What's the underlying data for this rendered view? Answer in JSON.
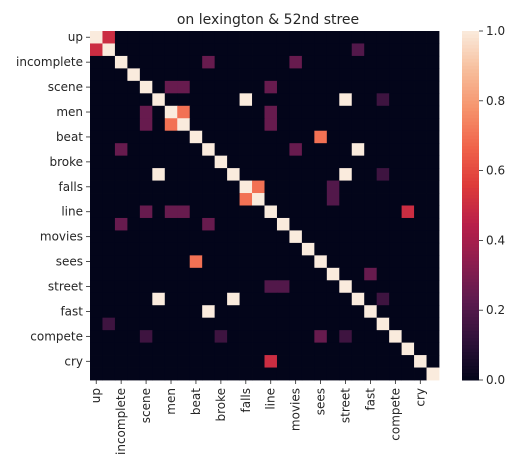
{
  "chart_data": {
    "type": "heatmap",
    "title": "on lexington & 52nd stree",
    "xlabel": "",
    "ylabel": "",
    "labels": [
      "up",
      "",
      "incomplete",
      "",
      "scene",
      "",
      "men",
      "",
      "beat",
      "",
      "broke",
      "",
      "falls",
      "",
      "line",
      "",
      "movies",
      "",
      "sees",
      "",
      "street",
      "",
      "fast",
      "",
      "compete",
      "",
      "cry",
      ""
    ],
    "x_tick_labels": [
      "up",
      "incomplete",
      "scene",
      "men",
      "beat",
      "broke",
      "falls",
      "line",
      "movies",
      "sees",
      "street",
      "fast",
      "compete",
      "cry"
    ],
    "y_tick_labels": [
      "up",
      "incomplete",
      "scene",
      "men",
      "beat",
      "broke",
      "falls",
      "line",
      "movies",
      "sees",
      "street",
      "fast",
      "compete",
      "cry"
    ],
    "colorbar": {
      "min": 0.0,
      "max": 1.0,
      "ticks": [
        "0.0",
        "0.2",
        "0.4",
        "0.6",
        "0.8",
        "1.0"
      ]
    },
    "colormap": [
      "#03051a",
      "#2e1139",
      "#5b1a4e",
      "#8b1d4e",
      "#b81f4a",
      "#dd3a3a",
      "#f0634a",
      "#f6936c",
      "#f7be9c",
      "#faebdd"
    ],
    "matrix": [
      [
        1,
        0.5,
        0,
        0,
        0,
        0,
        0,
        0,
        0,
        0,
        0,
        0,
        0,
        0,
        0,
        0,
        0,
        0,
        0,
        0,
        0,
        0,
        0,
        0,
        0,
        0,
        0,
        0
      ],
      [
        0.5,
        1,
        0,
        0,
        0,
        0,
        0,
        0,
        0,
        0,
        0,
        0,
        0,
        0,
        0,
        0,
        0,
        0,
        0,
        0,
        0,
        0.2,
        0,
        0,
        0,
        0,
        0,
        0
      ],
      [
        0,
        0,
        1,
        0,
        0,
        0,
        0,
        0,
        0,
        0.25,
        0,
        0,
        0,
        0,
        0,
        0,
        0.25,
        0,
        0,
        0,
        0,
        0,
        0,
        0,
        0,
        0,
        0,
        0
      ],
      [
        0,
        0,
        0,
        1,
        0,
        0,
        0,
        0,
        0,
        0,
        0,
        0,
        0,
        0,
        0,
        0,
        0,
        0,
        0,
        0,
        0,
        0,
        0,
        0,
        0,
        0,
        0,
        0
      ],
      [
        0,
        0,
        0,
        0,
        1,
        0,
        0.25,
        0.25,
        0,
        0,
        0,
        0,
        0,
        0,
        0.25,
        0,
        0,
        0,
        0,
        0,
        0,
        0,
        0,
        0,
        0,
        0,
        0,
        0
      ],
      [
        0,
        0,
        0,
        0,
        0,
        1,
        0,
        0,
        0,
        0,
        0,
        0,
        1,
        0,
        0,
        0,
        0,
        0,
        0,
        0,
        1,
        0,
        0,
        0.15,
        0,
        0,
        0,
        0
      ],
      [
        0,
        0,
        0,
        0,
        0.25,
        0,
        1,
        0.7,
        0,
        0,
        0,
        0,
        0,
        0,
        0.25,
        0,
        0,
        0,
        0,
        0,
        0,
        0,
        0,
        0,
        0,
        0,
        0,
        0
      ],
      [
        0,
        0,
        0,
        0,
        0.25,
        0,
        0.7,
        1,
        0,
        0,
        0,
        0,
        0,
        0,
        0.25,
        0,
        0,
        0,
        0,
        0,
        0,
        0,
        0,
        0,
        0,
        0,
        0,
        0
      ],
      [
        0,
        0,
        0,
        0,
        0,
        0,
        0,
        0,
        1,
        0,
        0,
        0,
        0,
        0,
        0,
        0,
        0,
        0,
        0.7,
        0,
        0,
        0,
        0,
        0,
        0,
        0,
        0,
        0
      ],
      [
        0,
        0,
        0.25,
        0,
        0,
        0,
        0,
        0,
        0,
        1,
        0,
        0,
        0,
        0,
        0,
        0,
        0.25,
        0,
        0,
        0,
        0,
        1,
        0,
        0,
        0,
        0,
        0,
        0
      ],
      [
        0,
        0,
        0,
        0,
        0,
        0,
        0,
        0,
        0,
        0,
        1,
        0,
        0,
        0,
        0,
        0,
        0,
        0,
        0,
        0,
        0,
        0,
        0,
        0,
        0,
        0,
        0,
        0
      ],
      [
        0,
        0,
        0,
        0,
        0,
        1,
        0,
        0,
        0,
        0,
        0,
        1,
        0,
        0,
        0,
        0,
        0,
        0,
        0,
        0,
        1,
        0,
        0,
        0.15,
        0,
        0,
        0,
        0
      ],
      [
        0,
        0,
        0,
        0,
        0,
        0,
        0,
        0,
        0,
        0,
        0,
        0,
        1,
        0.7,
        0,
        0,
        0,
        0,
        0,
        0.2,
        0,
        0,
        0,
        0,
        0,
        0,
        0,
        0
      ],
      [
        0,
        0,
        0,
        0,
        0,
        0,
        0,
        0,
        0,
        0,
        0,
        0,
        0.7,
        1,
        0,
        0,
        0,
        0,
        0,
        0.2,
        0,
        0,
        0,
        0,
        0,
        0,
        0,
        0
      ],
      [
        0,
        0,
        0,
        0,
        0.25,
        0,
        0.25,
        0.25,
        0,
        0,
        0,
        0,
        0,
        0,
        1,
        0,
        0,
        0,
        0,
        0,
        0,
        0,
        0,
        0,
        0,
        0.5,
        0,
        0
      ],
      [
        0,
        0,
        0.25,
        0,
        0,
        0,
        0,
        0,
        0,
        0.25,
        0,
        0,
        0,
        0,
        0,
        1,
        0,
        0,
        0,
        0,
        0,
        0,
        0,
        0,
        0,
        0,
        0,
        0
      ],
      [
        0,
        0,
        0,
        0,
        0,
        0,
        0,
        0,
        0,
        0,
        0,
        0,
        0,
        0,
        0,
        0,
        1,
        0,
        0,
        0,
        0,
        0,
        0,
        0,
        0,
        0,
        0,
        0
      ],
      [
        0,
        0,
        0,
        0,
        0,
        0,
        0,
        0,
        0,
        0,
        0,
        0,
        0,
        0,
        0,
        0,
        0,
        1,
        0,
        0,
        0,
        0,
        0,
        0,
        0,
        0,
        0,
        0
      ],
      [
        0,
        0,
        0,
        0,
        0,
        0,
        0,
        0,
        0.7,
        0,
        0,
        0,
        0,
        0,
        0,
        0,
        0,
        0,
        1,
        0,
        0,
        0,
        0,
        0,
        0,
        0,
        0,
        0
      ],
      [
        0,
        0,
        0,
        0,
        0,
        0,
        0,
        0,
        0,
        0,
        0,
        0,
        0,
        0,
        0,
        0,
        0,
        0,
        0,
        1,
        0,
        0,
        0.25,
        0,
        0,
        0,
        0,
        0
      ],
      [
        0,
        0,
        0,
        0,
        0,
        0,
        0,
        0,
        0,
        0,
        0,
        0,
        0,
        0,
        0.2,
        0.2,
        0,
        0,
        0,
        0,
        1,
        0,
        0,
        0,
        0,
        0,
        0,
        0
      ],
      [
        0,
        0,
        0,
        0,
        0,
        1,
        0,
        0,
        0,
        0,
        0,
        1,
        0,
        0,
        0,
        0,
        0,
        0,
        0,
        0,
        0,
        1,
        0,
        0.15,
        0,
        0,
        0,
        0
      ],
      [
        0,
        0,
        0,
        0,
        0,
        0,
        0,
        0,
        0,
        1,
        0,
        0,
        0,
        0,
        0,
        0,
        0,
        0,
        0,
        0,
        0,
        0,
        1,
        0,
        0,
        0,
        0,
        0
      ],
      [
        0,
        0.15,
        0,
        0,
        0,
        0,
        0,
        0,
        0,
        0,
        0,
        0,
        0,
        0,
        0,
        0,
        0,
        0,
        0,
        0,
        0,
        0,
        0,
        1,
        0,
        0,
        0,
        0
      ],
      [
        0,
        0,
        0,
        0,
        0.15,
        0,
        0,
        0,
        0,
        0,
        0.15,
        0,
        0,
        0,
        0,
        0,
        0,
        0,
        0.25,
        0,
        0.15,
        0,
        0,
        0,
        1,
        0,
        0,
        0
      ],
      [
        0,
        0,
        0,
        0,
        0,
        0,
        0,
        0,
        0,
        0,
        0,
        0,
        0,
        0,
        0,
        0,
        0,
        0,
        0,
        0,
        0,
        0,
        0,
        0,
        0,
        1,
        0,
        0
      ],
      [
        0,
        0,
        0,
        0,
        0,
        0,
        0,
        0,
        0,
        0,
        0,
        0,
        0,
        0,
        0.5,
        0,
        0,
        0,
        0,
        0,
        0,
        0,
        0,
        0,
        0,
        0,
        1,
        0
      ],
      [
        0,
        0,
        0,
        0,
        0,
        0,
        0,
        0,
        0,
        0,
        0,
        0,
        0,
        0,
        0,
        0,
        0,
        0,
        0,
        0,
        0,
        0,
        0,
        0,
        0,
        0,
        0,
        1
      ]
    ]
  }
}
